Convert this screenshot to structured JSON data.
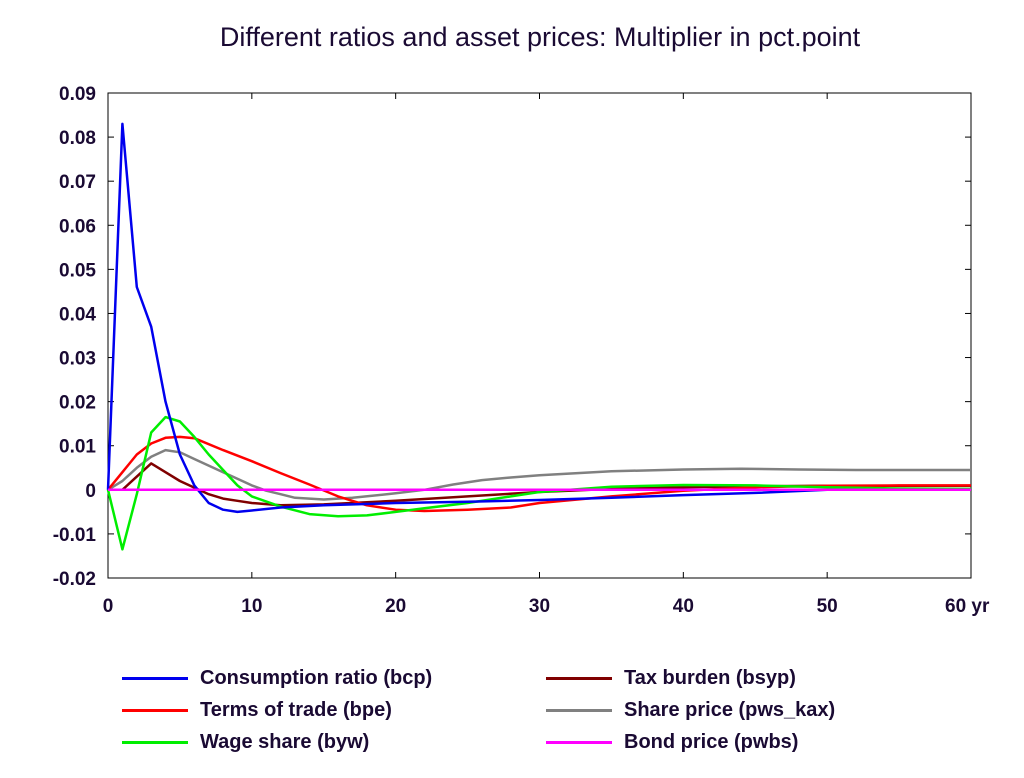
{
  "chart_data": {
    "type": "line",
    "title": "Different ratios and asset prices: Multiplier in pct.point",
    "xlabel": "",
    "ylabel": "",
    "xlim": [
      0,
      60
    ],
    "ylim": [
      -0.02,
      0.09
    ],
    "x_ticks": [
      0,
      10,
      20,
      30,
      40,
      50,
      60
    ],
    "x_tick_labels": [
      "0",
      "10",
      "20",
      "30",
      "40",
      "50",
      "60 yr"
    ],
    "y_ticks": [
      -0.02,
      -0.01,
      0,
      0.01,
      0.02,
      0.03,
      0.04,
      0.05,
      0.06,
      0.07,
      0.08,
      0.09
    ],
    "y_tick_labels": [
      "-0.02",
      "-0.01",
      "0",
      "0.01",
      "0.02",
      "0.03",
      "0.04",
      "0.05",
      "0.06",
      "0.07",
      "0.08",
      "0.09"
    ],
    "grid": false,
    "legend_position": "bottom",
    "series": [
      {
        "name": "Consumption ratio (bcp)",
        "color": "#0000ee",
        "x": [
          0,
          1,
          2,
          3,
          4,
          5,
          6,
          7,
          8,
          9,
          10,
          12,
          15,
          20,
          25,
          30,
          35,
          40,
          45,
          50,
          55,
          60
        ],
        "y": [
          0,
          0.083,
          0.046,
          0.037,
          0.02,
          0.008,
          0.001,
          -0.003,
          -0.0045,
          -0.005,
          -0.0047,
          -0.004,
          -0.0035,
          -0.003,
          -0.0027,
          -0.0023,
          -0.0018,
          -0.0012,
          -0.0007,
          0.0,
          0.0,
          0.0
        ]
      },
      {
        "name": "Terms of trade (bpe)",
        "color": "#ff0000",
        "x": [
          0,
          1,
          2,
          3,
          4,
          5,
          6,
          8,
          10,
          12,
          14,
          16,
          18,
          20,
          22,
          25,
          28,
          30,
          35,
          40,
          45,
          50,
          55,
          60
        ],
        "y": [
          0,
          0.004,
          0.008,
          0.0105,
          0.0118,
          0.012,
          0.0117,
          0.009,
          0.0065,
          0.0038,
          0.0012,
          -0.0015,
          -0.0035,
          -0.0045,
          -0.0048,
          -0.0045,
          -0.004,
          -0.003,
          -0.0015,
          -0.0002,
          0.0006,
          0.0009,
          0.001,
          0.001
        ]
      },
      {
        "name": "Wage share (byw)",
        "color": "#00ee00",
        "x": [
          0,
          1,
          2,
          3,
          4,
          5,
          6,
          7,
          8,
          9,
          10,
          12,
          14,
          16,
          18,
          20,
          22,
          25,
          28,
          30,
          35,
          40,
          45,
          50,
          55,
          60
        ],
        "y": [
          0,
          -0.0135,
          -0.001,
          0.013,
          0.0165,
          0.0155,
          0.012,
          0.008,
          0.0045,
          0.001,
          -0.0015,
          -0.0038,
          -0.0055,
          -0.006,
          -0.0058,
          -0.005,
          -0.0042,
          -0.003,
          -0.0015,
          -0.0005,
          0.0007,
          0.0011,
          0.001,
          0.0006,
          0.0003,
          0.0002
        ]
      },
      {
        "name": "Tax burden (bsyp)",
        "color": "#800000",
        "x": [
          0,
          1,
          2,
          3,
          4,
          5,
          6,
          7,
          8,
          9,
          10,
          12,
          15,
          18,
          20,
          25,
          30,
          35,
          40,
          45,
          50,
          55,
          60
        ],
        "y": [
          0,
          0,
          0.003,
          0.006,
          0.004,
          0.002,
          0.0005,
          -0.001,
          -0.002,
          -0.0025,
          -0.003,
          -0.0035,
          -0.0033,
          -0.0028,
          -0.0025,
          -0.0015,
          -0.0005,
          0.0002,
          0.0006,
          0.0008,
          0.0009,
          0.0009,
          0.0009
        ]
      },
      {
        "name": "Share price (pws_kax)",
        "color": "#808080",
        "x": [
          0,
          1,
          2,
          3,
          4,
          5,
          6,
          7,
          8,
          9,
          10,
          11,
          12,
          13,
          14,
          15,
          17,
          20,
          22,
          24,
          26,
          28,
          30,
          35,
          40,
          44,
          48,
          52,
          56,
          60
        ],
        "y": [
          0,
          0.002,
          0.005,
          0.0075,
          0.009,
          0.0085,
          0.007,
          0.0055,
          0.004,
          0.0025,
          0.001,
          -0.0002,
          -0.001,
          -0.0018,
          -0.002,
          -0.0022,
          -0.0018,
          -0.0008,
          0.0,
          0.0012,
          0.0022,
          0.0028,
          0.0033,
          0.0042,
          0.0046,
          0.0048,
          0.0046,
          0.0045,
          0.0045,
          0.0045
        ]
      },
      {
        "name": "Bond price (pwbs)",
        "color": "#ff00ff",
        "x": [
          0,
          60
        ],
        "y": [
          0,
          0
        ]
      }
    ]
  }
}
